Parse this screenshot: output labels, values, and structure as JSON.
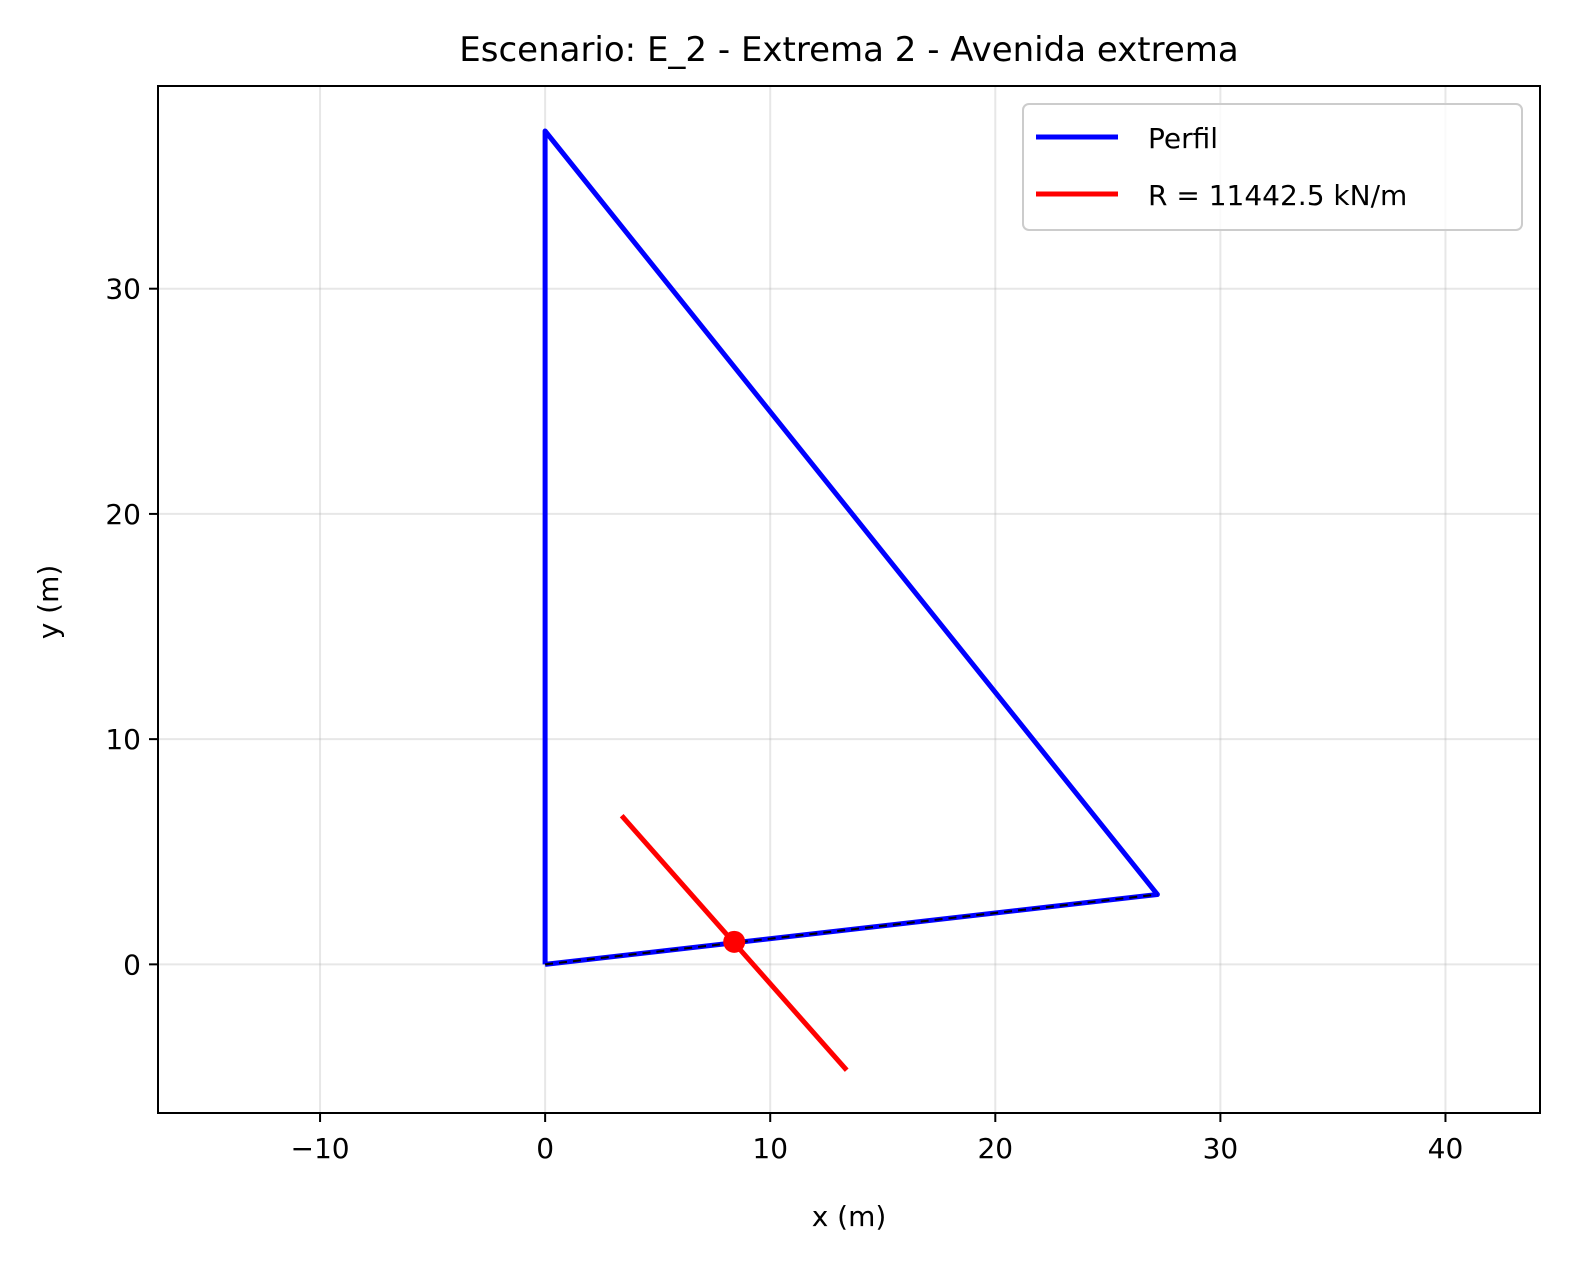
{
  "chart_data": {
    "type": "line",
    "title": "Escenario: E_2 - Extrema 2 - Avenida extrema",
    "xlabel": "x (m)",
    "ylabel": "y (m)",
    "xlim": [
      -17.2,
      44.2
    ],
    "ylim": [
      -6.6,
      39.0
    ],
    "xticks": [
      -10,
      0,
      10,
      20,
      30,
      40
    ],
    "yticks": [
      0,
      10,
      20,
      30
    ],
    "xtick_labels": [
      "−10",
      "0",
      "10",
      "20",
      "30",
      "40"
    ],
    "ytick_labels": [
      "0",
      "10",
      "20",
      "30"
    ],
    "grid": true,
    "legend_position": "top-right",
    "series": [
      {
        "name": "Perfil",
        "color": "#0000ff",
        "points": [
          [
            0,
            0
          ],
          [
            0,
            37.0
          ],
          [
            27.2,
            3.1
          ],
          [
            0,
            0
          ]
        ]
      },
      {
        "name": "R = 11442.5 kN/m",
        "color": "#ff0000",
        "points": [
          [
            3.4,
            6.6
          ],
          [
            13.4,
            -4.7
          ]
        ]
      }
    ],
    "base_dashed_line": {
      "color": "#000000",
      "points": [
        [
          0,
          0
        ],
        [
          27.2,
          3.1
        ]
      ]
    },
    "resultant_point": {
      "color": "#ff0000",
      "x": 8.4,
      "y": 1.0
    }
  }
}
